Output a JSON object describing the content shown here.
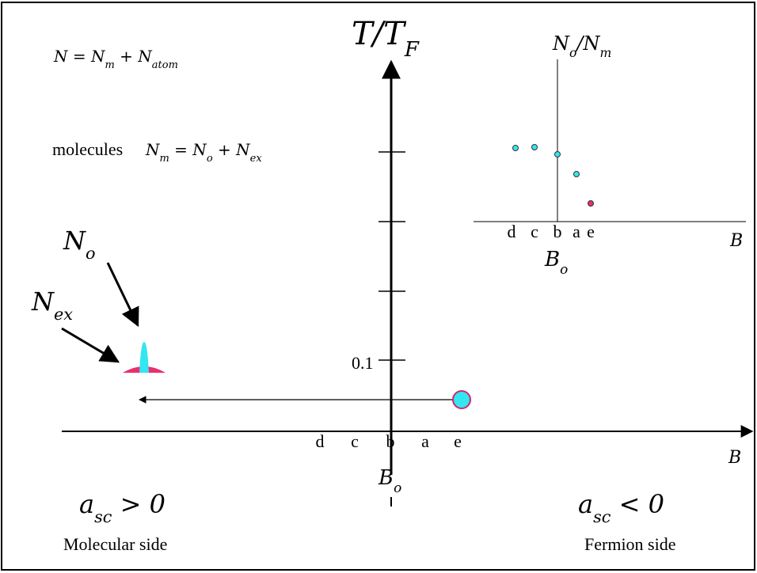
{
  "equations": {
    "total": [
      "N = N",
      "m",
      " + N",
      "atom"
    ],
    "molecules_label": "molecules",
    "molecules": [
      "N",
      "m",
      " = N",
      "o",
      " + N",
      "ex"
    ]
  },
  "axis": {
    "y_label": [
      "T/T",
      "F"
    ],
    "tick_label": "0.1",
    "letters": [
      "d",
      "c",
      "b",
      "a",
      "e"
    ],
    "x_label": "B",
    "x_marker": [
      "B",
      "o"
    ]
  },
  "inset": {
    "y_label": [
      "N",
      "o",
      "/N",
      "m"
    ],
    "letters": [
      "d",
      "c",
      "b",
      "a",
      "e"
    ],
    "x_label": "B",
    "x_marker": [
      "B",
      "o"
    ]
  },
  "peaks": {
    "condensate": [
      "N",
      "o"
    ],
    "excited": [
      "N",
      "ex"
    ]
  },
  "sides": {
    "left": {
      "condition": [
        "a",
        "sc",
        " > 0"
      ],
      "label": "Molecular side"
    },
    "right": {
      "condition": [
        "a",
        "sc",
        " < 0"
      ],
      "label": "Fermion side"
    }
  }
}
